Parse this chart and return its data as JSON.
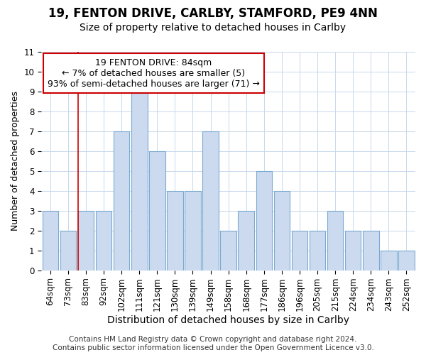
{
  "title1": "19, FENTON DRIVE, CARLBY, STAMFORD, PE9 4NN",
  "title2": "Size of property relative to detached houses in Carlby",
  "xlabel": "Distribution of detached houses by size in Carlby",
  "ylabel": "Number of detached properties",
  "categories": [
    "64sqm",
    "73sqm",
    "83sqm",
    "92sqm",
    "102sqm",
    "111sqm",
    "121sqm",
    "130sqm",
    "139sqm",
    "149sqm",
    "158sqm",
    "168sqm",
    "177sqm",
    "186sqm",
    "196sqm",
    "205sqm",
    "215sqm",
    "224sqm",
    "234sqm",
    "243sqm",
    "252sqm"
  ],
  "values": [
    3,
    2,
    3,
    3,
    7,
    9,
    6,
    4,
    4,
    7,
    2,
    3,
    5,
    4,
    2,
    2,
    3,
    2,
    2,
    1,
    1
  ],
  "bar_color": "#ccdaf0",
  "bar_edge_color": "#7aaad0",
  "vline_index": 2,
  "annotation_lines": [
    "19 FENTON DRIVE: 84sqm",
    "← 7% of detached houses are smaller (5)",
    "93% of semi-detached houses are larger (71) →"
  ],
  "annotation_box_color": "#ffffff",
  "annotation_box_edge": "#cc0000",
  "vline_color": "#cc0000",
  "ylim": [
    0,
    11
  ],
  "yticks": [
    0,
    1,
    2,
    3,
    4,
    5,
    6,
    7,
    8,
    9,
    10,
    11
  ],
  "footer": "Contains HM Land Registry data © Crown copyright and database right 2024.\nContains public sector information licensed under the Open Government Licence v3.0.",
  "grid_color": "#c8d8ec",
  "title1_fontsize": 12,
  "title2_fontsize": 10,
  "xlabel_fontsize": 10,
  "ylabel_fontsize": 9,
  "tick_fontsize": 8.5,
  "annot_fontsize": 9,
  "footer_fontsize": 7.5
}
